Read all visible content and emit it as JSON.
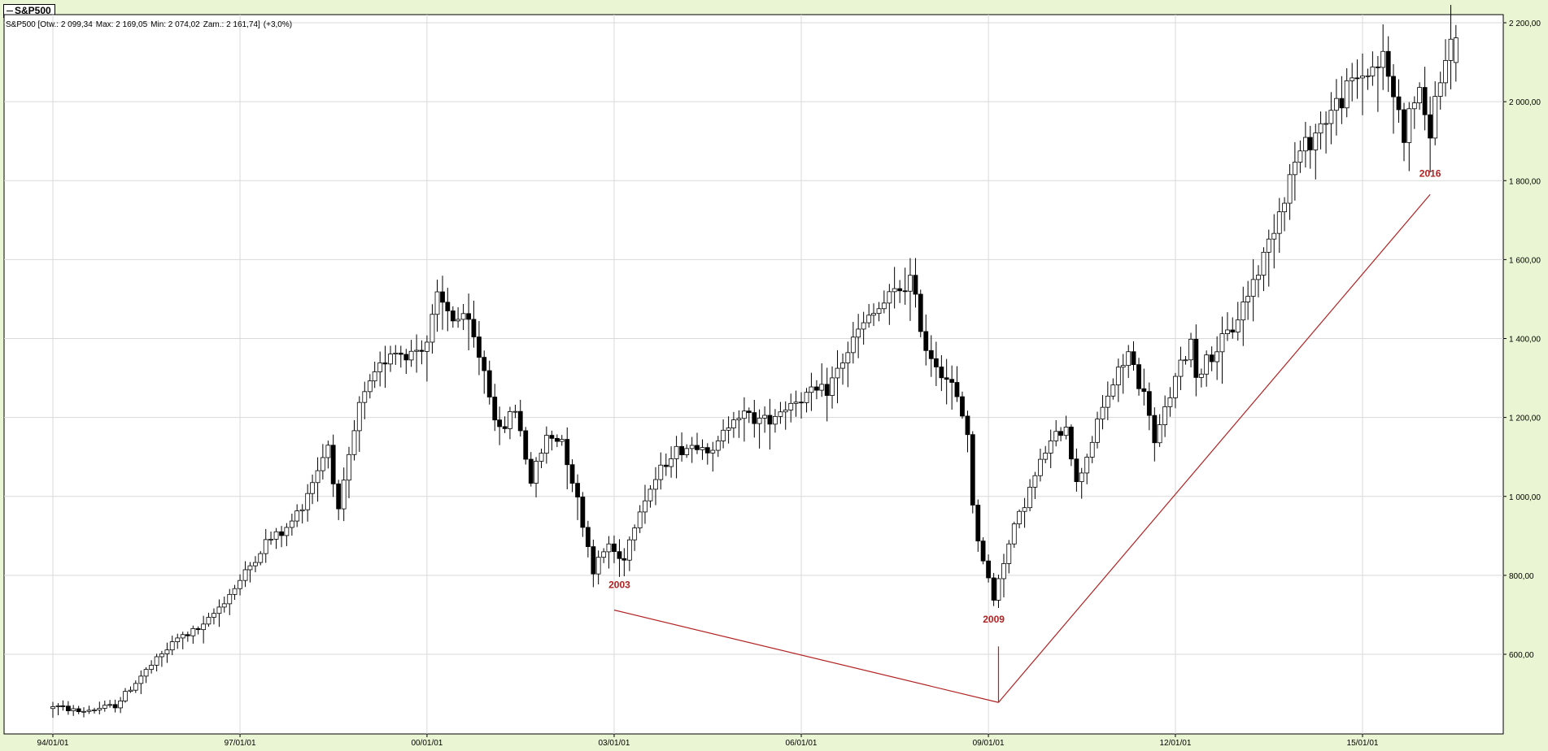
{
  "instrument": {
    "tab_label": "S&P500"
  },
  "readout": {
    "name": "S&P500",
    "open": "Otw.: 2 099,34",
    "max": "Max: 2 169,05",
    "min": "Min: 2 074,02",
    "close": "Zam.: 2 161,74",
    "change": "(+3,0%)"
  },
  "colors": {
    "background": "#e9f5d3",
    "plot_background": "#ffffff",
    "grid": "#d9d9d9",
    "candle": "#000000",
    "annotation": "#b22222"
  },
  "chart_data": {
    "type": "candlestick",
    "title": "",
    "xlabel": "",
    "ylabel": "",
    "ylim": [
      435,
      2225
    ],
    "xlim": [
      "1993-09-01",
      "2016-09-01"
    ],
    "grid": true,
    "x_ticks": [
      {
        "date": "1994-01-01",
        "label": "94/01/01"
      },
      {
        "date": "1997-01-01",
        "label": "97/01/01"
      },
      {
        "date": "2000-01-01",
        "label": "00/01/01"
      },
      {
        "date": "2003-01-01",
        "label": "03/01/01"
      },
      {
        "date": "2006-01-01",
        "label": "06/01/01"
      },
      {
        "date": "2009-01-01",
        "label": "09/01/01"
      },
      {
        "date": "2012-01-01",
        "label": "12/01/01"
      },
      {
        "date": "2015-01-01",
        "label": "15/01/01"
      }
    ],
    "y_ticks": [
      {
        "value": 600,
        "label": "600,00"
      },
      {
        "value": 800,
        "label": "800,00"
      },
      {
        "value": 1000,
        "label": "1 000,00"
      },
      {
        "value": 1200,
        "label": "1 200,00"
      },
      {
        "value": 1400,
        "label": "1 400,00"
      },
      {
        "value": 1600,
        "label": "1 600,00"
      },
      {
        "value": 1800,
        "label": "1 800,00"
      },
      {
        "value": 2000,
        "label": "2 000,00"
      },
      {
        "value": 2200,
        "label": "2 200,00"
      }
    ],
    "close_anchors": [
      [
        "1994-01-01",
        470
      ],
      [
        "1994-06-01",
        455
      ],
      [
        "1995-01-01",
        470
      ],
      [
        "1995-06-01",
        545
      ],
      [
        "1996-01-01",
        640
      ],
      [
        "1996-06-01",
        670
      ],
      [
        "1997-01-01",
        786
      ],
      [
        "1997-06-01",
        885
      ],
      [
        "1997-10-01",
        915
      ],
      [
        "1998-01-01",
        980
      ],
      [
        "1998-06-01",
        1133
      ],
      [
        "1998-08-01",
        957
      ],
      [
        "1998-12-01",
        1229
      ],
      [
        "1999-06-01",
        1372
      ],
      [
        "1999-10-01",
        1362
      ],
      [
        "2000-01-01",
        1394
      ],
      [
        "2000-03-01",
        1499
      ],
      [
        "2000-06-01",
        1455
      ],
      [
        "2000-09-01",
        1436
      ],
      [
        "2000-12-01",
        1320
      ],
      [
        "2001-03-01",
        1160
      ],
      [
        "2001-06-01",
        1224
      ],
      [
        "2001-09-01",
        1040
      ],
      [
        "2001-12-01",
        1148
      ],
      [
        "2002-03-01",
        1147
      ],
      [
        "2002-06-01",
        990
      ],
      [
        "2002-09-01",
        815
      ],
      [
        "2002-12-01",
        880
      ],
      [
        "2003-02-01",
        841
      ],
      [
        "2003-03-01",
        848
      ],
      [
        "2003-06-01",
        975
      ],
      [
        "2003-12-01",
        1111
      ],
      [
        "2004-06-01",
        1140
      ],
      [
        "2004-08-01",
        1104
      ],
      [
        "2004-12-01",
        1211
      ],
      [
        "2005-06-01",
        1191
      ],
      [
        "2005-12-01",
        1248
      ],
      [
        "2006-06-01",
        1270
      ],
      [
        "2006-12-01",
        1418
      ],
      [
        "2007-06-01",
        1503
      ],
      [
        "2007-10-01",
        1549
      ],
      [
        "2008-01-01",
        1378
      ],
      [
        "2008-06-01",
        1280
      ],
      [
        "2008-09-01",
        1166
      ],
      [
        "2008-10-01",
        968
      ],
      [
        "2008-11-01",
        896
      ],
      [
        "2009-02-01",
        735
      ],
      [
        "2009-03-01",
        797
      ],
      [
        "2009-06-01",
        919
      ],
      [
        "2009-12-01",
        1115
      ],
      [
        "2010-04-01",
        1186
      ],
      [
        "2010-06-01",
        1030
      ],
      [
        "2010-12-01",
        1258
      ],
      [
        "2011-04-01",
        1363
      ],
      [
        "2011-08-01",
        1218
      ],
      [
        "2011-09-01",
        1131
      ],
      [
        "2011-12-01",
        1258
      ],
      [
        "2012-04-01",
        1397
      ],
      [
        "2012-05-01",
        1310
      ],
      [
        "2012-12-01",
        1426
      ],
      [
        "2013-06-01",
        1606
      ],
      [
        "2013-12-01",
        1848
      ],
      [
        "2014-06-01",
        1960
      ],
      [
        "2014-12-01",
        2059
      ],
      [
        "2015-05-01",
        2107
      ],
      [
        "2015-08-01",
        1972
      ],
      [
        "2015-09-01",
        1920
      ],
      [
        "2015-12-01",
        2044
      ],
      [
        "2016-01-01",
        1940
      ],
      [
        "2016-02-01",
        1932
      ],
      [
        "2016-04-01",
        2065
      ],
      [
        "2016-07-01",
        2162
      ]
    ],
    "annotations": [
      {
        "label": "2003",
        "date": "2003-02-01",
        "value": 768
      },
      {
        "label": "2009",
        "date": "2009-02-01",
        "value": 680
      },
      {
        "label": "2016",
        "date": "2016-02-01",
        "value": 1810
      }
    ],
    "trendlines": [
      {
        "from": [
          "2003-01-01",
          712
        ],
        "to": [
          "2009-03-01",
          478
        ]
      },
      {
        "from": [
          "2009-03-01",
          478
        ],
        "to": [
          "2016-02-01",
          1765
        ]
      },
      {
        "from": [
          "2009-03-01",
          478
        ],
        "to": [
          "2009-03-01",
          620
        ]
      }
    ]
  }
}
